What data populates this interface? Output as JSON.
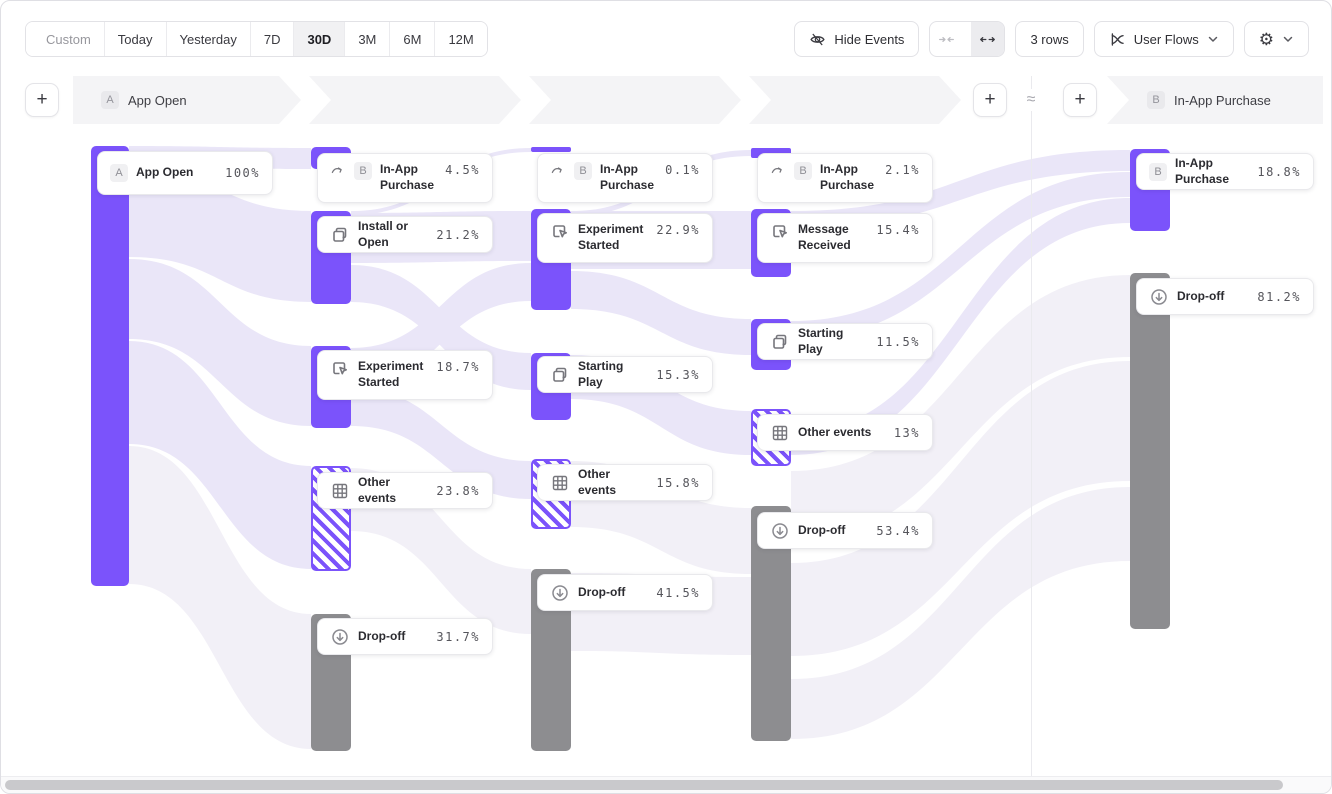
{
  "toolbar": {
    "date_ranges": [
      {
        "label": "Custom",
        "icon": "calendar-icon",
        "muted": true,
        "selected": false
      },
      {
        "label": "Today",
        "selected": false
      },
      {
        "label": "Yesterday",
        "selected": false
      },
      {
        "label": "7D",
        "selected": false
      },
      {
        "label": "30D",
        "selected": true
      },
      {
        "label": "3M",
        "selected": false
      },
      {
        "label": "6M",
        "selected": false
      },
      {
        "label": "12M",
        "selected": false
      }
    ],
    "hide_events_label": "Hide Events",
    "rows_label": "3 rows",
    "view_label": "User Flows"
  },
  "header": {
    "add": "+",
    "approx": "≈",
    "start": {
      "badge": "A",
      "label": "App Open"
    },
    "end": {
      "badge": "B",
      "label": "In-App Purchase"
    }
  },
  "colors": {
    "purple": "#7B53FB",
    "gray_bar": "#8D8D90",
    "ribbon": "#EAE6F8",
    "ribbon_faint": "#F2F0F7"
  },
  "chart_data": {
    "type": "sankey",
    "title": "User Flows",
    "start_event": "App Open",
    "end_event": "In-App Purchase",
    "columns": [
      {
        "name": "start",
        "nodes": [
          {
            "badge": "A",
            "label": "App Open",
            "value": "100%",
            "pct": 100,
            "kind": "start"
          }
        ]
      },
      {
        "name": "step-2",
        "nodes": [
          {
            "icon": "flow-arrow-icon",
            "badge": "B",
            "label": "In-App Purchase",
            "value": "4.5%",
            "pct": 4.5,
            "kind": "target",
            "two_line": true
          },
          {
            "icon": "copy-icon",
            "label": "Install or Open",
            "value": "21.2%",
            "pct": 21.2,
            "kind": "event"
          },
          {
            "icon": "click-icon",
            "label": "Experiment Started",
            "value": "18.7%",
            "pct": 18.7,
            "kind": "event",
            "two_line": true
          },
          {
            "icon": "grid-icon",
            "label": "Other events",
            "value": "23.8%",
            "pct": 23.8,
            "kind": "other"
          },
          {
            "icon": "dropoff-icon",
            "label": "Drop-off",
            "value": "31.7%",
            "pct": 31.7,
            "kind": "dropoff"
          }
        ]
      },
      {
        "name": "step-3",
        "nodes": [
          {
            "icon": "flow-arrow-icon",
            "badge": "B",
            "label": "In-App Purchase",
            "value": "0.1%",
            "pct": 0.1,
            "kind": "target",
            "two_line": true
          },
          {
            "icon": "click-icon",
            "label": "Experiment Started",
            "value": "22.9%",
            "pct": 22.9,
            "kind": "event",
            "two_line": true
          },
          {
            "icon": "copy-icon",
            "label": "Starting Play",
            "value": "15.3%",
            "pct": 15.3,
            "kind": "event"
          },
          {
            "icon": "grid-icon",
            "label": "Other events",
            "value": "15.8%",
            "pct": 15.8,
            "kind": "other"
          },
          {
            "icon": "dropoff-icon",
            "label": "Drop-off",
            "value": "41.5%",
            "pct": 41.5,
            "kind": "dropoff"
          }
        ]
      },
      {
        "name": "step-4",
        "nodes": [
          {
            "icon": "flow-arrow-icon",
            "badge": "B",
            "label": "In-App Purchase",
            "value": "2.1%",
            "pct": 2.1,
            "kind": "target",
            "two_line": true
          },
          {
            "icon": "click-icon",
            "label": "Message Received",
            "value": "15.4%",
            "pct": 15.4,
            "kind": "event",
            "two_line": true
          },
          {
            "icon": "copy-icon",
            "label": "Starting Play",
            "value": "11.5%",
            "pct": 11.5,
            "kind": "event"
          },
          {
            "icon": "grid-icon",
            "label": "Other events",
            "value": "13%",
            "pct": 13,
            "kind": "other"
          },
          {
            "icon": "dropoff-icon",
            "label": "Drop-off",
            "value": "53.4%",
            "pct": 53.4,
            "kind": "dropoff"
          }
        ]
      },
      {
        "name": "end",
        "nodes": [
          {
            "badge": "B",
            "label": "In-App Purchase",
            "value": "18.8%",
            "pct": 18.8,
            "kind": "target"
          },
          {
            "icon": "dropoff-icon",
            "label": "Drop-off",
            "value": "81.2%",
            "pct": 81.2,
            "kind": "dropoff"
          }
        ]
      }
    ]
  }
}
